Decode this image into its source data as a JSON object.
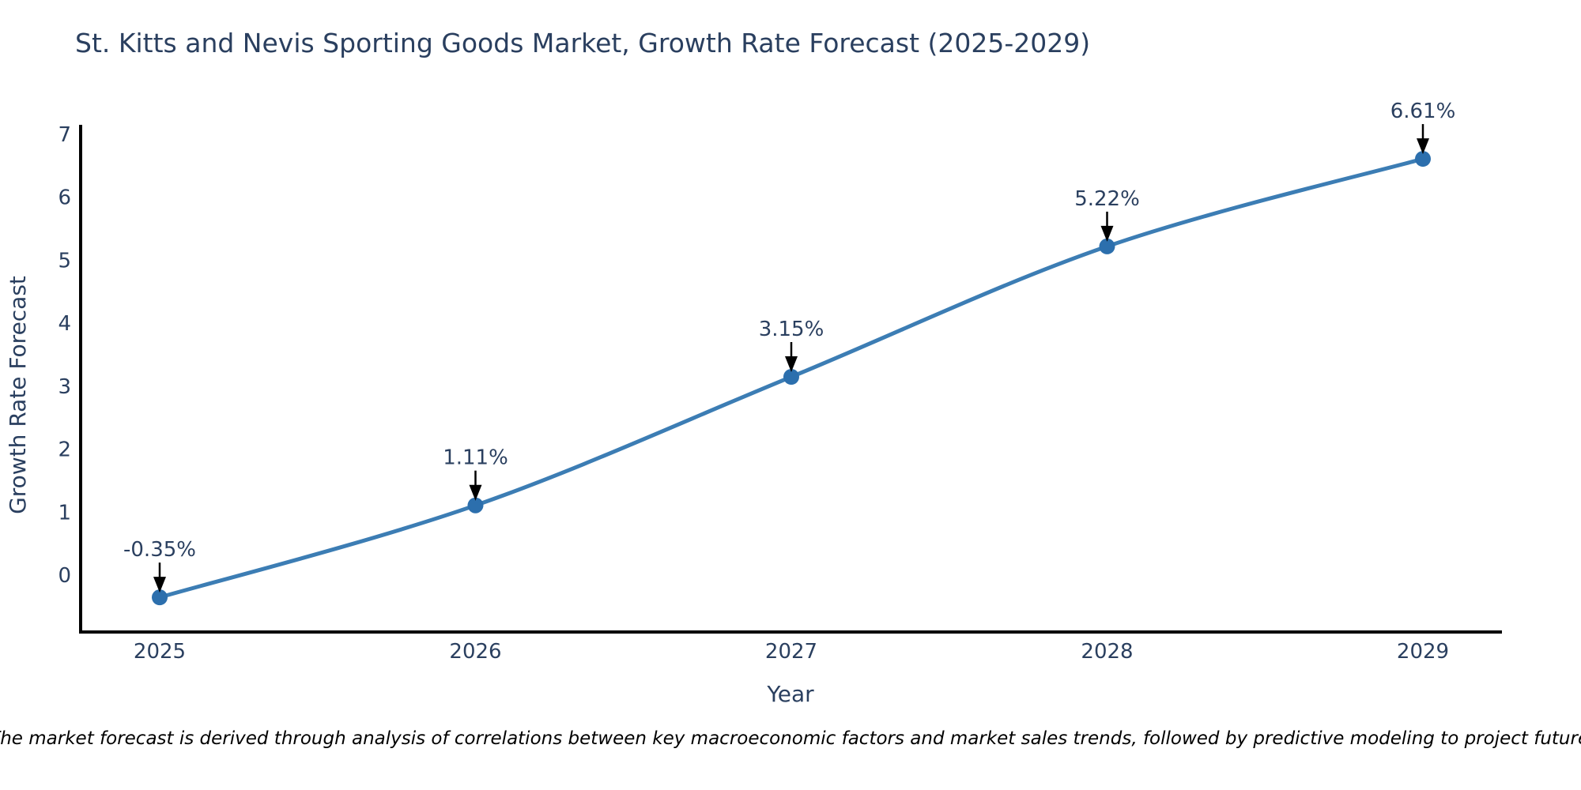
{
  "chart_data": {
    "type": "line",
    "title": "St. Kitts and Nevis Sporting Goods Market, Growth Rate Forecast (2025-2029)",
    "xlabel": "Year",
    "ylabel": "Growth Rate Forecast",
    "categories": [
      "2025",
      "2026",
      "2027",
      "2028",
      "2029"
    ],
    "series": [
      {
        "name": "Growth Rate Forecast",
        "values": [
          -0.35,
          1.11,
          3.15,
          5.22,
          6.61
        ],
        "point_labels": [
          "-0.35%",
          "1.11%",
          "3.15%",
          "5.22%",
          "6.61%"
        ]
      }
    ],
    "yticks": [
      0,
      1,
      2,
      3,
      4,
      5,
      6,
      7
    ],
    "ylim": [
      -0.9,
      7.15
    ],
    "grid": false,
    "legend_position": "none",
    "line_shape": "spline",
    "annotations_have_arrows": true
  },
  "note": "Note: The market forecast is derived through analysis of correlations between key macroeconomic factors and market sales trends, followed by predictive modeling to project future sales.",
  "colors": {
    "line": "#3c7db4",
    "marker": "#2c6fad",
    "axis_line": "#000000",
    "title_text": "#2a3f5f",
    "tick_text": "#2a3f5f",
    "annotation_text": "#2a3f5f",
    "arrow": "#000000",
    "note_text": "#000000",
    "background": "#ffffff"
  }
}
